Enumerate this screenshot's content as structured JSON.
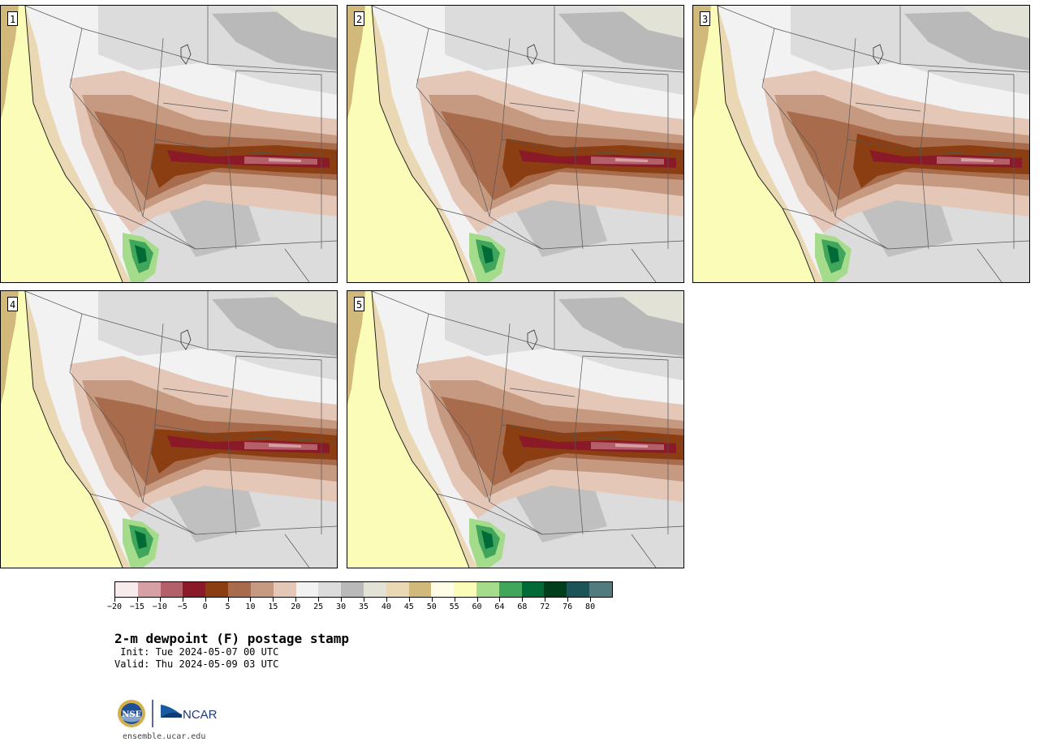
{
  "stamps": [
    {
      "label": "1",
      "dry_shift": 0
    },
    {
      "label": "2",
      "dry_shift": 1
    },
    {
      "label": "3",
      "dry_shift": 2
    },
    {
      "label": "4",
      "dry_shift": 0
    },
    {
      "label": "5",
      "dry_shift": 1
    }
  ],
  "colorbar": {
    "colors": [
      "#f7ebeb",
      "#d6a0a5",
      "#b3606a",
      "#8b1a28",
      "#8a3e11",
      "#a86c4c",
      "#c69a80",
      "#e4c7b7",
      "#f2f2f2",
      "#dcdcdc",
      "#b9b9b9",
      "#e2e2d6",
      "#e9d8b3",
      "#d1b87b",
      "#fffde6",
      "#fafcb8",
      "#a4dc8c",
      "#3fa65c",
      "#006b36",
      "#003e1c",
      "#1c5457",
      "#517b7e"
    ],
    "tick_labels": [
      "-20",
      "-15",
      "-10",
      "-5",
      "0",
      "5",
      "10",
      "15",
      "20",
      "25",
      "30",
      "35",
      "40",
      "45",
      "50",
      "55",
      "60",
      "64",
      "68",
      "72",
      "76",
      "80"
    ]
  },
  "title": "2-m dewpoint (F) postage stamp",
  "init": " Init: Tue 2024-05-07 00 UTC",
  "valid": "Valid: Thu 2024-05-09 03 UTC",
  "logos": {
    "nsf": "NSF",
    "ncar": "NCAR"
  },
  "site": "ensemble.ucar.edu"
}
